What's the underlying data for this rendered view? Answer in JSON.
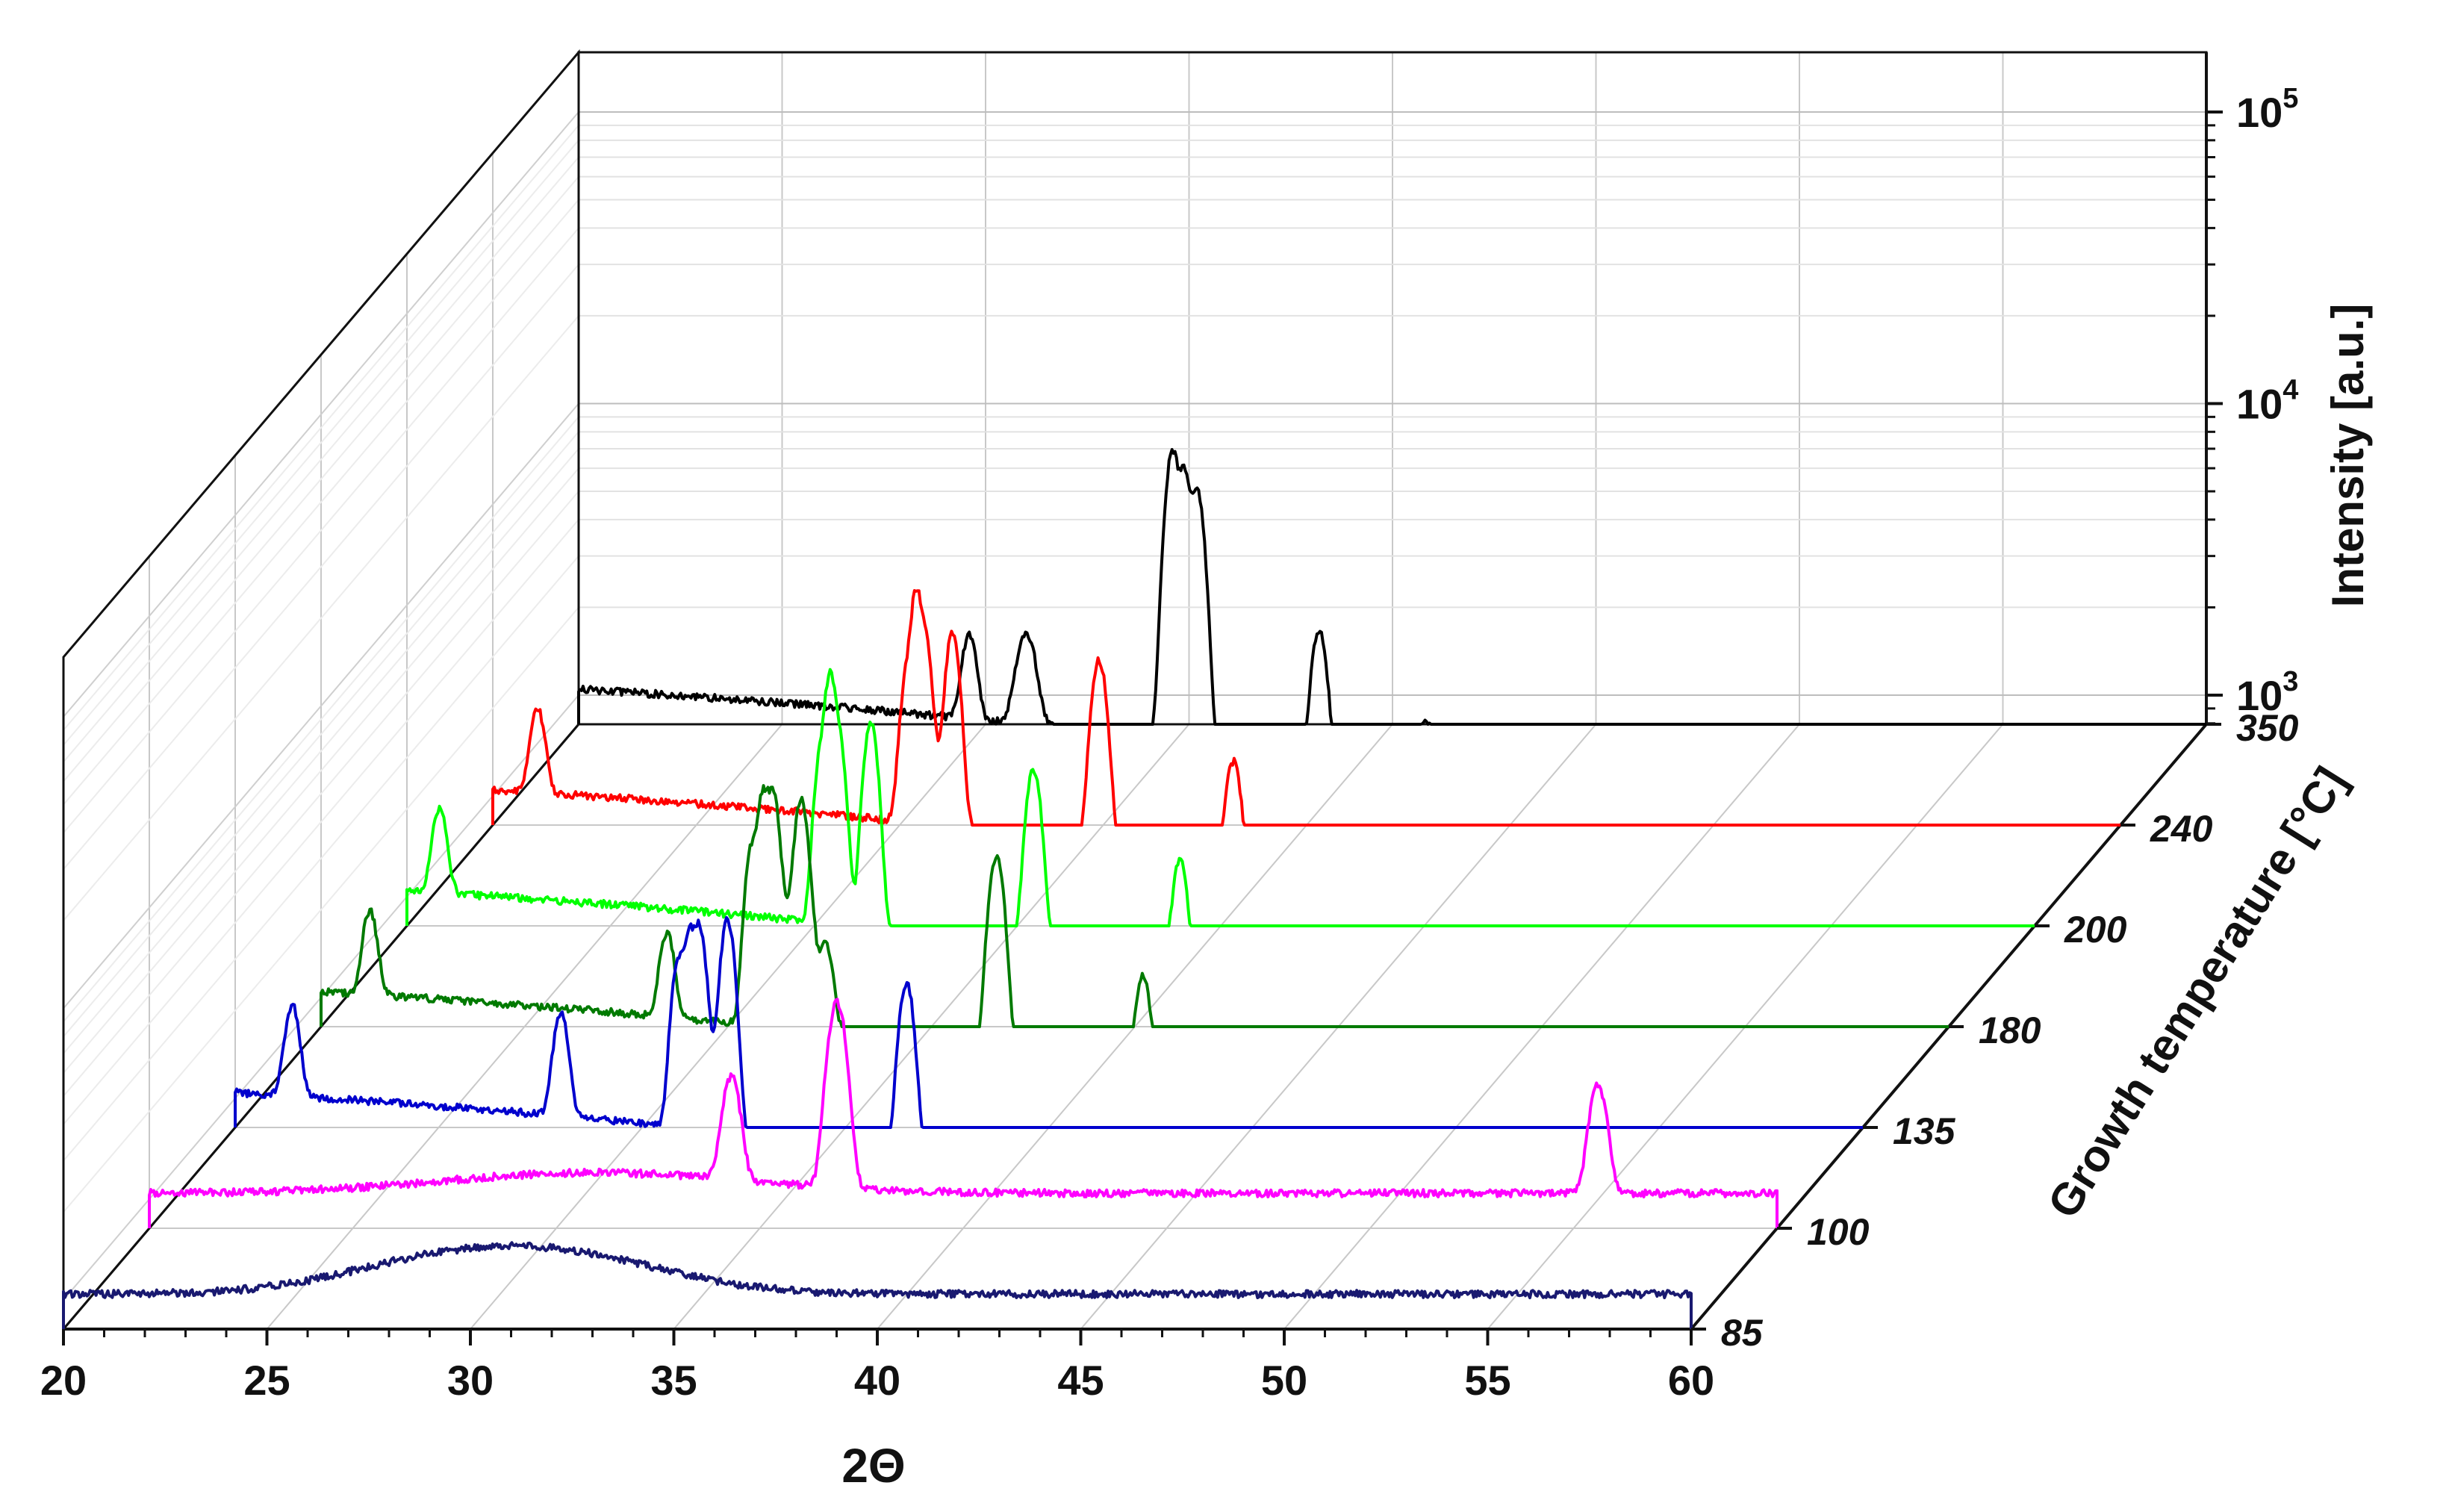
{
  "chart_data": {
    "type": "line",
    "subtype": "3d-waterfall",
    "title": "",
    "xlabel": "2Θ",
    "ylabel": "Growth temperature [°C]",
    "zlabel": "Intensity [a.u.]",
    "xlim": [
      20,
      60
    ],
    "x_ticks": [
      "20",
      "25",
      "30",
      "35",
      "40",
      "45",
      "50",
      "55",
      "60"
    ],
    "z_scale": "log",
    "z_ticks": [
      {
        "base": "10",
        "exp": "3",
        "value": 1000
      },
      {
        "base": "10",
        "exp": "4",
        "value": 10000
      },
      {
        "base": "10",
        "exp": "5",
        "value": 100000
      }
    ],
    "grid": true,
    "series": [
      {
        "name": "85",
        "color": "#191970",
        "baseline": 400,
        "slope": 0,
        "hump": {
          "center": 31,
          "width": 4,
          "height": 1.2
        },
        "peaks": []
      },
      {
        "name": "100",
        "color": "#ff00ff",
        "baseline": 400,
        "slope": 0,
        "hump": {
          "center": 31,
          "width": 5,
          "height": 0.4
        },
        "peaks": [
          [
            34.3,
            0.45,
            0.18
          ],
          [
            36.9,
            2.2,
            0.18
          ],
          [
            55.6,
            0.5,
            0.18
          ]
        ]
      },
      {
        "name": "135",
        "color": "#0000cd",
        "baseline": 500,
        "slope": -0.004,
        "hump": null,
        "peaks": [
          [
            21.4,
            0.35,
            0.15
          ],
          [
            28.0,
            0.45,
            0.15
          ],
          [
            30.9,
            1.6,
            0.14
          ],
          [
            31.4,
            3.2,
            0.14
          ],
          [
            32.1,
            3.8,
            0.14
          ],
          [
            36.5,
            1.8,
            0.15
          ],
          [
            44.9,
            0.55,
            0.15
          ],
          [
            45.7,
            0.3,
            0.15
          ],
          [
            49.3,
            0.5,
            0.15
          ],
          [
            50.2,
            0.3,
            0.15
          ],
          [
            50.9,
            2.0,
            0.14
          ],
          [
            52.5,
            0.5,
            0.15
          ]
        ]
      },
      {
        "name": "180",
        "color": "#007a00",
        "baseline": 500,
        "slope": -0.004,
        "hump": null,
        "peaks": [
          [
            21.2,
            0.3,
            0.15
          ],
          [
            28.5,
            0.3,
            0.15
          ],
          [
            30.6,
            2.0,
            0.14
          ],
          [
            31.1,
            6.0,
            0.14
          ],
          [
            31.8,
            5.5,
            0.14
          ],
          [
            32.4,
            0.35,
            0.15
          ],
          [
            36.6,
            3.0,
            0.15
          ],
          [
            40.2,
            0.6,
            0.15
          ],
          [
            46.2,
            0.5,
            0.15
          ],
          [
            47.0,
            0.3,
            0.15
          ],
          [
            52.0,
            1.5,
            0.14
          ],
          [
            52.9,
            2.0,
            0.14
          ],
          [
            53.5,
            3.3,
            0.14
          ],
          [
            55.2,
            0.5,
            0.15
          ]
        ]
      },
      {
        "name": "200",
        "color": "#00ff00",
        "baseline": 550,
        "slope": -0.004,
        "hump": null,
        "peaks": [
          [
            20.8,
            0.3,
            0.15
          ],
          [
            30.2,
            1.8,
            0.14
          ],
          [
            30.6,
            2.5,
            0.14
          ],
          [
            31.4,
            3.3,
            0.14
          ],
          [
            35.4,
            2.0,
            0.15
          ],
          [
            39.0,
            0.6,
            0.15
          ],
          [
            45.8,
            0.45,
            0.15
          ],
          [
            46.6,
            0.3,
            0.15
          ],
          [
            51.7,
            0.7,
            0.15
          ],
          [
            52.5,
            1.8,
            0.14
          ],
          [
            54.7,
            0.6,
            0.15
          ]
        ]
      },
      {
        "name": "240",
        "color": "#ff0000",
        "baseline": 600,
        "slope": -0.004,
        "hump": null,
        "peaks": [
          [
            21.1,
            0.3,
            0.15
          ],
          [
            30.2,
            1.2,
            0.14
          ],
          [
            30.6,
            2.6,
            0.14
          ],
          [
            31.3,
            2.6,
            0.14
          ],
          [
            34.9,
            2.2,
            0.15
          ],
          [
            38.2,
            0.5,
            0.15
          ],
          [
            45.0,
            0.45,
            0.15
          ],
          [
            45.8,
            0.3,
            0.15
          ],
          [
            50.8,
            0.8,
            0.15
          ],
          [
            51.6,
            1.5,
            0.14
          ],
          [
            52.5,
            2.4,
            0.14
          ],
          [
            53.5,
            0.5,
            0.15
          ],
          [
            54.3,
            0.4,
            0.15
          ]
        ]
      },
      {
        "name": "350",
        "color": "#000000",
        "baseline": 700,
        "slope": -0.004,
        "hump": null,
        "peaks": [
          [
            29.6,
            0.3,
            0.15
          ],
          [
            31.0,
            0.35,
            0.2
          ],
          [
            34.6,
            28.0,
            0.14
          ],
          [
            35.2,
            9.5,
            0.14
          ],
          [
            38.2,
            0.9,
            0.15
          ],
          [
            40.8,
            0.25,
            0.3
          ],
          [
            49.0,
            0.25,
            0.15
          ],
          [
            50.0,
            0.3,
            0.15
          ],
          [
            54.1,
            1.3,
            0.14
          ],
          [
            56.1,
            2.6,
            0.14
          ],
          [
            57.0,
            0.4,
            0.15
          ],
          [
            58.0,
            0.5,
            0.15
          ]
        ]
      }
    ]
  }
}
